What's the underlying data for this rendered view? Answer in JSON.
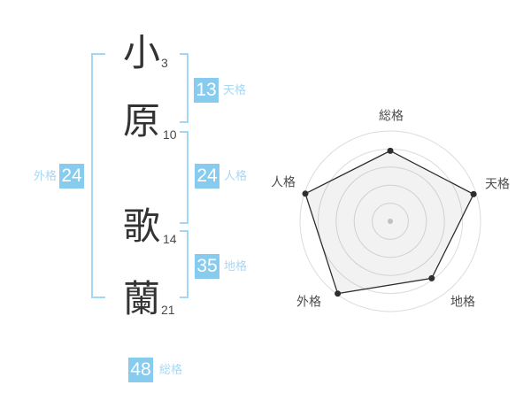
{
  "name": {
    "full": "小原歌蘭",
    "chars": [
      {
        "char": "小",
        "strokes": "3"
      },
      {
        "char": "原",
        "strokes": "10"
      },
      {
        "char": "歌",
        "strokes": "14"
      },
      {
        "char": "蘭",
        "strokes": "21"
      }
    ]
  },
  "kaku": {
    "tenkaku": {
      "label": "天格",
      "value": "13"
    },
    "jinkaku": {
      "label": "人格",
      "value": "24"
    },
    "chikaku": {
      "label": "地格",
      "value": "35"
    },
    "gaikaku": {
      "label": "外格",
      "value": "24"
    },
    "soukaku": {
      "label": "総格",
      "value": "48"
    }
  },
  "colors": {
    "background": "#ffffff",
    "badge_blue": "#87cbef",
    "label_blue": "#a9d8f3",
    "bracket_blue": "#a3d7f5",
    "text_dark": "#333333",
    "grid_gray": "#dcdcdc",
    "polygon_stroke": "#2e2e2e",
    "polygon_fill": "rgba(0,0,0,0.05)",
    "vertex_dot": "#2e2e2e",
    "center_dot": "#c0c0c0"
  },
  "chart_data": {
    "type": "radar",
    "categories": [
      "総格",
      "天格",
      "地格",
      "外格",
      "人格"
    ],
    "values": [
      78,
      97,
      78,
      99,
      99
    ],
    "max": 100,
    "rings": 5,
    "start_angle_deg": -90,
    "direction": "clockwise",
    "grid": "concentric-circles",
    "legend": false,
    "title": "",
    "notes": "five-axis name-fortune radar; values estimated from vertex radii relative to outer ring"
  }
}
